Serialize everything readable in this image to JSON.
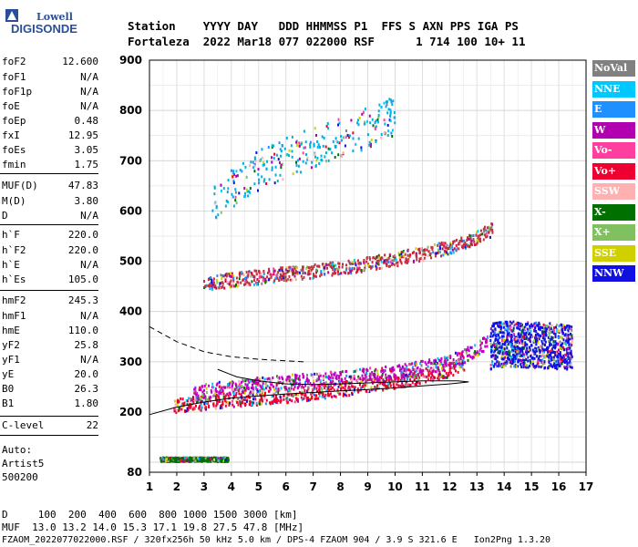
{
  "logo": {
    "line1": "Lowell",
    "line2": "DIGISONDE"
  },
  "header": {
    "line1": "Station    YYYY DAY   DDD HHMMSS P1  FFS S AXN PPS IGA PS",
    "line2": "Fortaleza  2022 Mar18 077 022000 RSF      1 714 100 10+ 11"
  },
  "params": [
    {
      "name": "foF2",
      "value": "12.600"
    },
    {
      "name": "foF1",
      "value": "N/A"
    },
    {
      "name": "foF1p",
      "value": "N/A"
    },
    {
      "name": "foE",
      "value": "N/A"
    },
    {
      "name": "foEp",
      "value": "0.48"
    },
    {
      "name": "fxI",
      "value": "12.95"
    },
    {
      "name": "foEs",
      "value": "3.05"
    },
    {
      "name": "fmin",
      "value": "1.75"
    },
    {
      "name": "MUF(D)",
      "value": "47.83"
    },
    {
      "name": "M(D)",
      "value": "3.80"
    },
    {
      "name": "D",
      "value": "N/A"
    },
    {
      "name": "h`F",
      "value": "220.0"
    },
    {
      "name": "h`F2",
      "value": "220.0"
    },
    {
      "name": "h`E",
      "value": "N/A"
    },
    {
      "name": "h`Es",
      "value": "105.0"
    },
    {
      "name": "hmF2",
      "value": "245.3"
    },
    {
      "name": "hmF1",
      "value": "N/A"
    },
    {
      "name": "hmE",
      "value": "110.0"
    },
    {
      "name": "yF2",
      "value": "25.8"
    },
    {
      "name": "yF1",
      "value": "N/A"
    },
    {
      "name": "yE",
      "value": "20.0"
    },
    {
      "name": "B0",
      "value": "26.3"
    },
    {
      "name": "B1",
      "value": "1.80"
    },
    {
      "name": "C-level",
      "value": "22"
    }
  ],
  "auto": {
    "line1": "Auto:",
    "line2": "Artist5",
    "line3": "500200"
  },
  "footer": {
    "d_line": "D     100  200  400  600  800 1000 1500 3000 [km]",
    "muf_line": "MUF  13.0 13.2 14.0 15.3 17.1 19.8 27.5 47.8 [MHz]",
    "info_line": "FZAOM_2022077022000.RSF / 320fx256h 50 kHz 5.0 km / DPS-4 FZAOM 904 / 3.9 S 321.6 E   Ion2Png 1.3.20"
  },
  "legend": [
    {
      "label": "NoVal",
      "color": "#808080"
    },
    {
      "label": "NNE",
      "color": "#00c8ff"
    },
    {
      "label": "E",
      "color": "#1e90ff"
    },
    {
      "label": "W",
      "color": "#b000b0"
    },
    {
      "label": "Vo-",
      "color": "#ff3fa0"
    },
    {
      "label": "Vo+",
      "color": "#ee0030"
    },
    {
      "label": "SSW",
      "color": "#ffb0b0"
    },
    {
      "label": "X-",
      "color": "#007000"
    },
    {
      "label": "X+",
      "color": "#80c060"
    },
    {
      "label": "SSE",
      "color": "#d0d000"
    },
    {
      "label": "NNW",
      "color": "#1010e0"
    }
  ],
  "chart_data": {
    "type": "scatter",
    "xlim": [
      1,
      17
    ],
    "ylim": [
      80,
      900
    ],
    "xticks": [
      1,
      2,
      3,
      4,
      5,
      6,
      7,
      8,
      9,
      10,
      11,
      12,
      13,
      14,
      15,
      16,
      17
    ],
    "yticks": [
      80,
      200,
      300,
      400,
      500,
      600,
      700,
      800,
      900
    ],
    "grid": true,
    "traces": [
      {
        "name": "o-trace",
        "color": "#ee0030",
        "x": [
          1.9,
          3,
          4,
          5,
          6,
          7,
          8,
          9,
          10,
          11,
          11.5,
          12,
          12.6
        ],
        "y": [
          212,
          218,
          224,
          228,
          232,
          238,
          245,
          252,
          260,
          270,
          276,
          284,
          298
        ]
      },
      {
        "name": "x-trace",
        "color": "#c000c0",
        "x": [
          2.6,
          3.5,
          4.5,
          5.5,
          6.5,
          7.5,
          8.5,
          9.5,
          10.5,
          11.5,
          12.3,
          12.9,
          13.4
        ],
        "y": [
          238,
          245,
          252,
          257,
          262,
          265,
          270,
          276,
          283,
          292,
          305,
          322,
          340
        ]
      },
      {
        "name": "multi-hop",
        "color": "#c03040",
        "x": [
          3,
          4,
          5,
          6,
          7,
          8,
          9,
          10,
          11,
          12,
          13,
          13.6
        ],
        "y": [
          455,
          462,
          468,
          474,
          480,
          487,
          494,
          503,
          515,
          528,
          545,
          565
        ]
      },
      {
        "name": "upper",
        "color": "#00b0e0",
        "x": [
          3.3,
          4,
          5,
          6,
          7,
          8,
          9,
          10
        ],
        "y": [
          610,
          640,
          680,
          705,
          725,
          745,
          765,
          790
        ]
      },
      {
        "name": "spread-F",
        "color": "#1010e0",
        "x": [
          13.5,
          14,
          14.5,
          15,
          15.5,
          16,
          16.5
        ],
        "y": [
          330,
          335,
          335,
          333,
          332,
          330,
          328
        ]
      },
      {
        "name": "Es",
        "color": "#007000",
        "x": [
          1.4,
          2,
          2.5,
          3,
          3.5,
          3.9
        ],
        "y": [
          105,
          105,
          105,
          105,
          105,
          105
        ]
      }
    ],
    "profile_line": {
      "x": [
        1,
        2,
        3,
        4,
        5,
        6,
        7,
        8,
        9,
        10,
        11,
        12,
        12.7,
        12.3,
        12,
        11,
        10,
        9,
        8,
        7,
        6,
        5,
        4.2,
        3.5
      ],
      "y": [
        195,
        210,
        220,
        228,
        232,
        236,
        239,
        242,
        245,
        248,
        252,
        256,
        260,
        262,
        262,
        262,
        260,
        258,
        256,
        255,
        256,
        262,
        270,
        285
      ]
    },
    "dashed_line": {
      "x": [
        1,
        2,
        3,
        4,
        5,
        6,
        6.7
      ],
      "y": [
        370,
        340,
        320,
        310,
        305,
        302,
        300
      ]
    }
  }
}
